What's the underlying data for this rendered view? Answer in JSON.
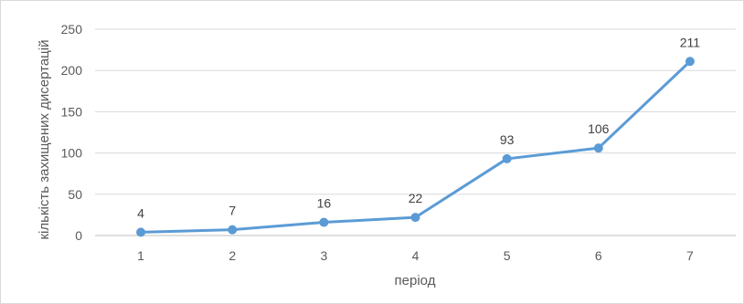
{
  "chart_data": {
    "type": "line",
    "title": "",
    "xlabel": "період",
    "ylabel": "кількість захищених дисертацій",
    "categories": [
      "1",
      "2",
      "3",
      "4",
      "5",
      "6",
      "7"
    ],
    "series": [
      {
        "values": [
          4,
          7,
          16,
          22,
          93,
          106,
          211
        ],
        "color": "#5b9bd5"
      }
    ],
    "data_labels": [
      "4",
      "7",
      "16",
      "22",
      "93",
      "106",
      "211"
    ],
    "ylim": [
      0,
      250
    ],
    "yticks": [
      "0",
      "50",
      "100",
      "150",
      "200",
      "250"
    ],
    "grid": true,
    "grid_color": "#d9d9d9",
    "legend": "none"
  }
}
